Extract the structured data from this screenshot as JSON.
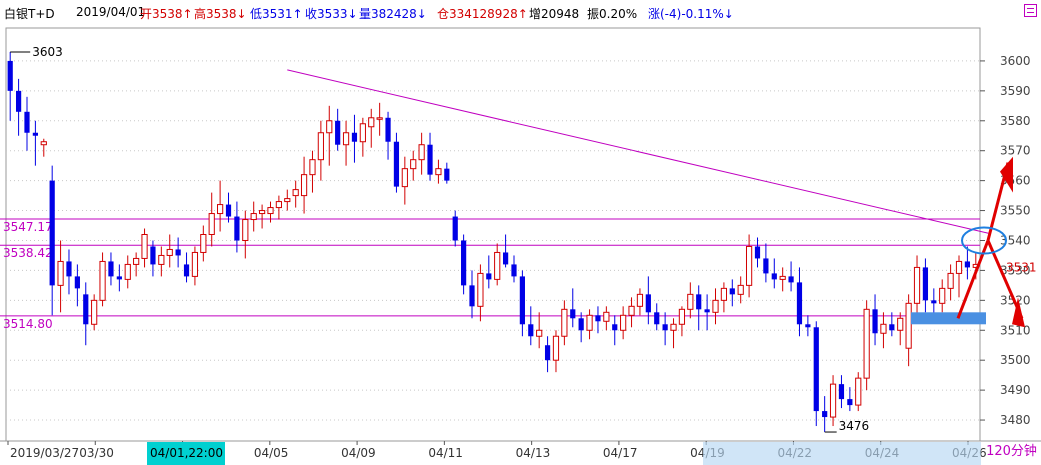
{
  "header": {
    "symbol": "白银T+D",
    "date": "2019/04/01",
    "open": "开3538↑",
    "high": "高3538↓",
    "low": "低3531↑",
    "close": "收3533↓",
    "volume": "量382428↓",
    "position": "仓334128928↑",
    "increase": "增20948",
    "amplitude": "振0.20%",
    "change": "涨(-4)-0.11%↓"
  },
  "colors": {
    "up": "#d20000",
    "down": "#0000e6",
    "pink": "#c000c0",
    "grid": "#c8c8c8",
    "highlight_blue": "#4a90e2"
  },
  "chart_data": {
    "type": "candlestick",
    "period_label": "120分钟",
    "ylim": [
      3473,
      3611
    ],
    "y_ticks": [
      3480,
      3490,
      3500,
      3510,
      3520,
      3530,
      3540,
      3550,
      3560,
      3570,
      3580,
      3590,
      3600
    ],
    "x_ticks": [
      "2019/03/27",
      "03/30",
      "04/03",
      "04/05",
      "04/09",
      "04/11",
      "04/13",
      "04/17",
      "04/19",
      "04/22",
      "04/24",
      "04/26"
    ],
    "cursor_label": "04/01,22:00",
    "current_price_label": "3531",
    "annotations": [
      {
        "text": "3603",
        "value": 3603
      },
      {
        "text": "3476",
        "value": 3476
      }
    ],
    "horizontal_levels": [
      {
        "label": "3547.17",
        "value": 3547.17
      },
      {
        "label": "3538.42",
        "value": 3538.42
      },
      {
        "label": "3514.80",
        "value": 3514.8
      }
    ],
    "trendlines": [
      {
        "from": [
          33,
          3597
        ],
        "to": [
          163,
          3512
        ]
      }
    ],
    "candles": [
      [
        3600,
        3603,
        3580,
        3590
      ],
      [
        3590,
        3594,
        3575,
        3583
      ],
      [
        3583,
        3588,
        3570,
        3576
      ],
      [
        3576,
        3580,
        3565,
        3575
      ],
      [
        3572,
        3574,
        3568,
        3573
      ],
      [
        3560,
        3565,
        3515,
        3525
      ],
      [
        3525,
        3540,
        3516,
        3533
      ],
      [
        3533,
        3537,
        3522,
        3528
      ],
      [
        3528,
        3532,
        3518,
        3524
      ],
      [
        3522,
        3526,
        3505,
        3512
      ],
      [
        3512,
        3522,
        3510,
        3520
      ],
      [
        3520,
        3536,
        3518,
        3533
      ],
      [
        3533,
        3536,
        3525,
        3528
      ],
      [
        3528,
        3532,
        3523,
        3527
      ],
      [
        3527,
        3535,
        3524,
        3532
      ],
      [
        3532,
        3536,
        3528,
        3534
      ],
      [
        3534,
        3544,
        3531,
        3542
      ],
      [
        3538,
        3540,
        3528,
        3532
      ],
      [
        3532,
        3538,
        3528,
        3535
      ],
      [
        3535,
        3542,
        3531,
        3537
      ],
      [
        3537,
        3541,
        3531,
        3535
      ],
      [
        3532,
        3536,
        3526,
        3528
      ],
      [
        3528,
        3538,
        3525,
        3536
      ],
      [
        3536,
        3545,
        3533,
        3542
      ],
      [
        3542,
        3556,
        3538,
        3549
      ],
      [
        3549,
        3560,
        3543,
        3552
      ],
      [
        3552,
        3556,
        3546,
        3548
      ],
      [
        3548,
        3553,
        3536,
        3540
      ],
      [
        3540,
        3550,
        3534,
        3547
      ],
      [
        3547,
        3553,
        3543,
        3549
      ],
      [
        3549,
        3552,
        3544,
        3550
      ],
      [
        3549,
        3553,
        3546,
        3551
      ],
      [
        3551,
        3555,
        3547,
        3553
      ],
      [
        3553,
        3557,
        3550,
        3554
      ],
      [
        3555,
        3560,
        3551,
        3557
      ],
      [
        3555,
        3568,
        3549,
        3562
      ],
      [
        3562,
        3570,
        3556,
        3567
      ],
      [
        3567,
        3580,
        3560,
        3576
      ],
      [
        3576,
        3585,
        3565,
        3580
      ],
      [
        3580,
        3584,
        3570,
        3572
      ],
      [
        3572,
        3580,
        3565,
        3576
      ],
      [
        3576,
        3582,
        3566,
        3573
      ],
      [
        3573,
        3581,
        3568,
        3579
      ],
      [
        3578,
        3584,
        3571,
        3581
      ],
      [
        3581,
        3586,
        3575,
        3581
      ],
      [
        3581,
        3583,
        3567,
        3573
      ],
      [
        3573,
        3576,
        3556,
        3558
      ],
      [
        3558,
        3568,
        3552,
        3564
      ],
      [
        3564,
        3570,
        3560,
        3567
      ],
      [
        3567,
        3576,
        3562,
        3572
      ],
      [
        3572,
        3576,
        3560,
        3562
      ],
      [
        3562,
        3567,
        3559,
        3564
      ],
      [
        3564,
        3566,
        3559,
        3560
      ],
      [
        3548,
        3550,
        3538,
        3540
      ],
      [
        3540,
        3542,
        3522,
        3525
      ],
      [
        3525,
        3530,
        3514,
        3518
      ],
      [
        3518,
        3532,
        3513,
        3529
      ],
      [
        3529,
        3535,
        3524,
        3527
      ],
      [
        3527,
        3539,
        3525,
        3536
      ],
      [
        3536,
        3542,
        3531,
        3532
      ],
      [
        3532,
        3535,
        3526,
        3528
      ],
      [
        3528,
        3530,
        3508,
        3512
      ],
      [
        3512,
        3518,
        3505,
        3508
      ],
      [
        3508,
        3516,
        3504,
        3510
      ],
      [
        3505,
        3508,
        3496,
        3500
      ],
      [
        3500,
        3510,
        3496,
        3508
      ],
      [
        3508,
        3520,
        3505,
        3517
      ],
      [
        3517,
        3524,
        3511,
        3514
      ],
      [
        3514,
        3516,
        3506,
        3510
      ],
      [
        3510,
        3517,
        3507,
        3515
      ],
      [
        3515,
        3518,
        3509,
        3513
      ],
      [
        3513,
        3518,
        3510,
        3516
      ],
      [
        3512,
        3515,
        3505,
        3510
      ],
      [
        3510,
        3518,
        3507,
        3515
      ],
      [
        3515,
        3521,
        3511,
        3518
      ],
      [
        3518,
        3524,
        3515,
        3522
      ],
      [
        3522,
        3528,
        3512,
        3516
      ],
      [
        3516,
        3519,
        3510,
        3512
      ],
      [
        3512,
        3516,
        3505,
        3510
      ],
      [
        3510,
        3514,
        3504,
        3512
      ],
      [
        3512,
        3518,
        3508,
        3517
      ],
      [
        3517,
        3526,
        3514,
        3522
      ],
      [
        3522,
        3525,
        3510,
        3517
      ],
      [
        3517,
        3522,
        3510,
        3516
      ],
      [
        3516,
        3524,
        3512,
        3520
      ],
      [
        3520,
        3526,
        3516,
        3524
      ],
      [
        3524,
        3527,
        3518,
        3522
      ],
      [
        3522,
        3528,
        3519,
        3525
      ],
      [
        3525,
        3542,
        3521,
        3538
      ],
      [
        3538,
        3541,
        3531,
        3534
      ],
      [
        3534,
        3539,
        3526,
        3529
      ],
      [
        3529,
        3534,
        3524,
        3527
      ],
      [
        3527,
        3531,
        3523,
        3528
      ],
      [
        3528,
        3533,
        3523,
        3526
      ],
      [
        3526,
        3531,
        3508,
        3512
      ],
      [
        3512,
        3515,
        3508,
        3511
      ],
      [
        3511,
        3513,
        3478,
        3483
      ],
      [
        3483,
        3488,
        3476,
        3481
      ],
      [
        3481,
        3495,
        3478,
        3492
      ],
      [
        3492,
        3495,
        3484,
        3487
      ],
      [
        3487,
        3491,
        3483,
        3485
      ],
      [
        3485,
        3496,
        3483,
        3494
      ],
      [
        3494,
        3520,
        3490,
        3517
      ],
      [
        3517,
        3522,
        3505,
        3509
      ],
      [
        3509,
        3516,
        3504,
        3512
      ],
      [
        3512,
        3516,
        3508,
        3510
      ],
      [
        3510,
        3516,
        3505,
        3514
      ],
      [
        3504,
        3522,
        3498,
        3519
      ],
      [
        3519,
        3535,
        3515,
        3531
      ],
      [
        3531,
        3534,
        3516,
        3520
      ],
      [
        3520,
        3524,
        3514,
        3519
      ],
      [
        3519,
        3527,
        3516,
        3524
      ],
      [
        3524,
        3532,
        3520,
        3529
      ],
      [
        3529,
        3535,
        3521,
        3533
      ],
      [
        3533,
        3538,
        3527,
        3531
      ],
      [
        3531,
        3536,
        3527,
        3532
      ]
    ]
  }
}
